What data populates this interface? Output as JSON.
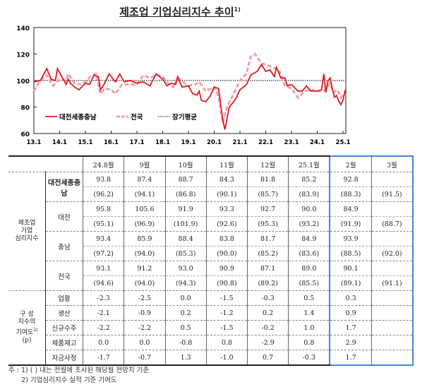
{
  "title": "제조업 기업심리지수 추이",
  "title_note": "1)",
  "chart_data": {
    "type": "line",
    "ylim": [
      60,
      140
    ],
    "yticks": [
      "60",
      "80",
      "100",
      "120",
      "140"
    ],
    "xticks": [
      "13.1",
      "14.1",
      "15.1",
      "16.1",
      "17.1",
      "18.1",
      "19.1",
      "20.1",
      "21.1",
      "22.1",
      "23.1",
      "24.1",
      "25.1"
    ],
    "grid": false,
    "legend_placement": "bottom-left",
    "series": [
      {
        "name": "대전세종충남",
        "color": "#e0191e",
        "style": "solid",
        "x": [
          "13.1",
          "13.4",
          "13.6",
          "13.7",
          "13.9",
          "13.11",
          "13.12",
          "14.2",
          "14.4",
          "14.5",
          "14.6",
          "14.8",
          "14.10",
          "15.1",
          "15.3",
          "15.5",
          "15.7",
          "15.8",
          "15.10",
          "15.12",
          "16.3",
          "16.5",
          "16.7",
          "16.10",
          "17.1",
          "17.4",
          "17.7",
          "17.10",
          "18.1",
          "18.3",
          "18.5",
          "18.7",
          "18.8",
          "18.10",
          "19.1",
          "19.3",
          "19.5",
          "19.6",
          "19.7",
          "19.9",
          "19.11",
          "20.1",
          "20.3",
          "20.5",
          "20.6",
          "20.8",
          "20.11",
          "21.1",
          "21.4",
          "21.6",
          "21.9",
          "21.11",
          "22.1",
          "22.3",
          "22.5",
          "22.6",
          "22.8",
          "22.10",
          "22.11",
          "23.1",
          "23.4",
          "23.6",
          "23.8",
          "23.10",
          "24.1",
          "24.3",
          "24.4",
          "24.5",
          "24.6",
          "24.7",
          "24.8",
          "24.9",
          "24.10",
          "24.11",
          "24.12",
          "25.1",
          "25.2"
        ],
        "values": [
          99,
          100,
          106,
          109,
          101,
          100,
          109,
          103,
          97,
          101,
          98,
          95,
          93,
          98,
          97,
          104,
          103,
          93,
          98,
          105,
          99,
          105,
          99,
          100,
          98,
          99,
          96,
          105,
          101,
          96,
          98,
          97,
          103,
          95,
          96,
          90,
          89,
          92,
          85,
          84,
          88,
          95,
          94,
          70,
          63,
          80,
          86,
          93,
          97,
          104,
          107,
          112,
          107,
          108,
          103,
          110,
          102,
          102,
          96,
          97,
          92,
          92,
          96,
          92,
          92,
          93,
          105,
          91,
          100,
          102,
          93.8,
          87.4,
          88.7,
          84.3,
          81.8,
          85.2,
          92.8
        ]
      },
      {
        "name": "전국",
        "color": "#f2a0a8",
        "style": "dashed",
        "x": [
          "13.1",
          "13.4",
          "13.7",
          "13.10",
          "14.1",
          "14.4",
          "14.5",
          "14.8",
          "14.11",
          "15.1",
          "15.4",
          "15.6",
          "15.8",
          "15.10",
          "16.1",
          "16.3",
          "16.6",
          "16.9",
          "17.1",
          "17.4",
          "17.7",
          "17.10",
          "18.1",
          "18.4",
          "18.6",
          "18.8",
          "19.1",
          "19.4",
          "19.6",
          "19.9",
          "20.1",
          "20.3",
          "20.5",
          "20.7",
          "20.10",
          "21.1",
          "21.4",
          "21.6",
          "21.8",
          "21.11",
          "22.1",
          "22.4",
          "22.7",
          "22.10",
          "23.1",
          "23.4",
          "23.7",
          "23.10",
          "24.1",
          "24.4",
          "24.7",
          "24.8",
          "24.9",
          "24.10",
          "24.11",
          "24.12",
          "25.1",
          "25.2"
        ],
        "values": [
          92,
          100,
          104,
          96,
          101,
          100,
          105,
          98,
          97,
          99,
          104,
          105,
          90,
          94,
          93,
          90,
          97,
          97,
          97,
          104,
          102,
          104,
          103,
          97,
          95,
          102,
          96,
          97,
          99,
          92,
          95,
          88,
          68,
          80,
          90,
          100,
          105,
          118,
          120,
          113,
          112,
          110,
          108,
          96,
          94,
          87,
          92,
          93,
          92,
          92,
          98,
          93.1,
          91.2,
          93.0,
          90.9,
          87.1,
          89.0,
          90.1
        ]
      },
      {
        "name": "장기평균",
        "color": "#777777",
        "style": "dotted",
        "values": [
          100
        ]
      }
    ]
  },
  "table": {
    "months": [
      "24.8월",
      "9월",
      "10월",
      "11월",
      "12월",
      "25.1월",
      "2월",
      "3월"
    ],
    "group1_label": [
      "제조업",
      "기업",
      "심리지수"
    ],
    "group2_label": [
      "구  성",
      "지수의",
      "기여도",
      "(p)"
    ],
    "group2_note": "2)",
    "regions": [
      {
        "name": "대전세종충남",
        "actual": [
          "93.8",
          "87.4",
          "88.7",
          "84.3",
          "81.8",
          "85.2",
          "92.8",
          ""
        ],
        "forecast": [
          "(96.2)",
          "(94.1)",
          "(86.8)",
          "(90.1)",
          "(85.7)",
          "(83.9)",
          "(88.3)",
          "(91.5)"
        ]
      },
      {
        "name": "대전",
        "actual": [
          "95.8",
          "105.6",
          "91.9",
          "93.3",
          "92.7",
          "90.0",
          "84.9",
          ""
        ],
        "forecast": [
          "(95.1)",
          "(96.9)",
          "(101.9)",
          "(92.6)",
          "(95.3)",
          "(93.2)",
          "(91.9)",
          "(88.7)"
        ]
      },
      {
        "name": "충남",
        "actual": [
          "93.4",
          "85.9",
          "88.4",
          "83.8",
          "81.7",
          "84.9",
          "93.9",
          ""
        ],
        "forecast": [
          "(97.2)",
          "(94.0)",
          "(85.3)",
          "(90.0)",
          "(85.2)",
          "(83.6)",
          "(88.5)",
          "(92.0)"
        ]
      },
      {
        "name": "전국",
        "actual": [
          "93.1",
          "91.2",
          "93.0",
          "90.9",
          "87.1",
          "89.0",
          "90.1",
          ""
        ],
        "forecast": [
          "(94.6)",
          "(94.0)",
          "(94.3)",
          "(90.8)",
          "(89.2)",
          "(85.5)",
          "(89.1)",
          "(91.1)"
        ]
      }
    ],
    "components": [
      {
        "name": "업황",
        "values": [
          "-2.3",
          "-2.5",
          "0.0",
          "-1.5",
          "-0.3",
          "0.5",
          "0.3",
          ""
        ]
      },
      {
        "name": "생산",
        "values": [
          "-2.1",
          "-0.9",
          "0.2",
          "-1.2",
          "0.2",
          "1.4",
          "0.9",
          ""
        ]
      },
      {
        "name": "신규수주",
        "values": [
          "-2.2",
          "-2.2",
          "0.5",
          "-1.5",
          "-0.2",
          "1.0",
          "1.7",
          ""
        ]
      },
      {
        "name": "제품재고",
        "values": [
          "0.0",
          "0.0",
          "-0.8",
          "0.8",
          "-2.9",
          "0.8",
          "2.9",
          ""
        ]
      },
      {
        "name": "자금사정",
        "values": [
          "-1.7",
          "-0.7",
          "1.3",
          "-1.0",
          "0.7",
          "-0.3",
          "1.7",
          ""
        ]
      }
    ]
  },
  "notes": [
    "주 : 1) (    ) 내는 전월에 조사된 해당월 전망치 기준",
    "      2) 기업심리지수 실적 기준 기여도"
  ]
}
